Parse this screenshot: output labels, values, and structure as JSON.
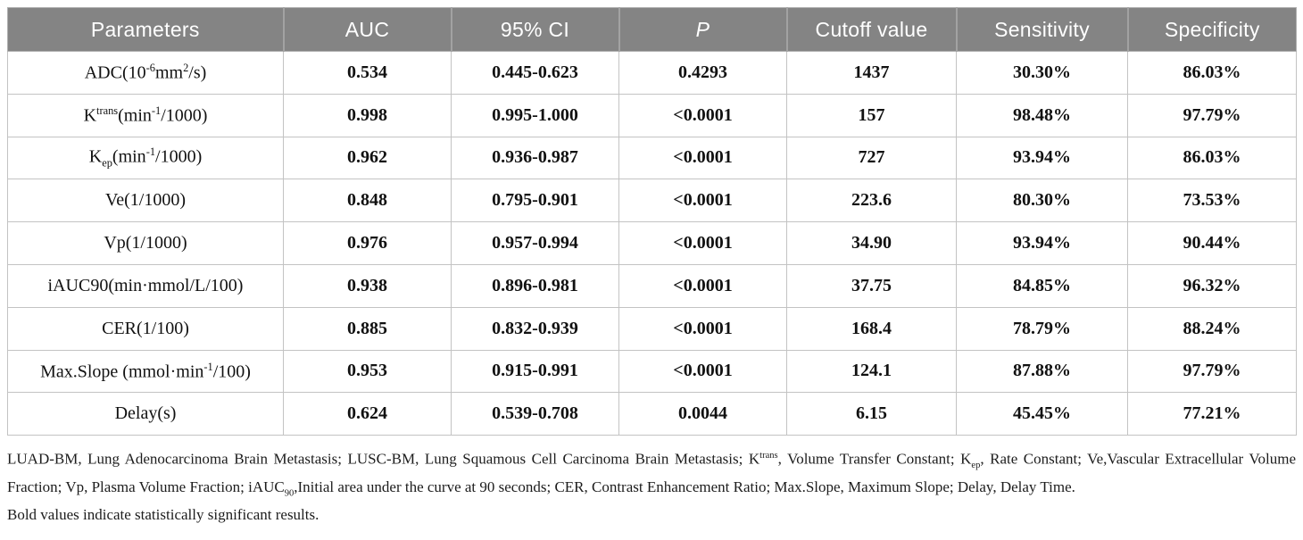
{
  "table": {
    "headers": {
      "parameters": "Parameters",
      "auc": "AUC",
      "ci": "95% CI",
      "p": "P",
      "cutoff": "Cutoff value",
      "sensitivity": "Sensitivity",
      "specificity": "Specificity"
    },
    "rows": [
      {
        "param_html": "ADC(10<sup>-6</sup>mm<sup>2</sup>/s)",
        "auc": "0.534",
        "ci": "0.445-0.623",
        "p": "0.4293",
        "cutoff": "1437",
        "sensitivity": "30.30%",
        "specificity": "86.03%"
      },
      {
        "param_html": "K<sup>trans</sup>(min<sup>-1</sup>/1000)",
        "auc": "0.998",
        "ci": "0.995-1.000",
        "p": "<0.0001",
        "cutoff": "157",
        "sensitivity": "98.48%",
        "specificity": "97.79%"
      },
      {
        "param_html": "K<sub>ep</sub>(min<sup>-1</sup>/1000)",
        "auc": "0.962",
        "ci": "0.936-0.987",
        "p": "<0.0001",
        "cutoff": "727",
        "sensitivity": "93.94%",
        "specificity": "86.03%"
      },
      {
        "param_html": "Ve(1/1000)",
        "auc": "0.848",
        "ci": "0.795-0.901",
        "p": "<0.0001",
        "cutoff": "223.6",
        "sensitivity": "80.30%",
        "specificity": "73.53%"
      },
      {
        "param_html": "Vp(1/1000)",
        "auc": "0.976",
        "ci": "0.957-0.994",
        "p": "<0.0001",
        "cutoff": "34.90",
        "sensitivity": "93.94%",
        "specificity": "90.44%"
      },
      {
        "param_html": "iAUC90(min&#183;mmol/L/100)",
        "auc": "0.938",
        "ci": "0.896-0.981",
        "p": "<0.0001",
        "cutoff": "37.75",
        "sensitivity": "84.85%",
        "specificity": "96.32%"
      },
      {
        "param_html": "CER(1/100)",
        "auc": "0.885",
        "ci": "0.832-0.939",
        "p": "<0.0001",
        "cutoff": "168.4",
        "sensitivity": "78.79%",
        "specificity": "88.24%"
      },
      {
        "param_html": "Max.Slope (mmol&#183;min<sup>-1</sup>/100)",
        "auc": "0.953",
        "ci": "0.915-0.991",
        "p": "<0.0001",
        "cutoff": "124.1",
        "sensitivity": "87.88%",
        "specificity": "97.79%"
      },
      {
        "param_html": "Delay(s)",
        "auc": "0.624",
        "ci": "0.539-0.708",
        "p": "0.0044",
        "cutoff": "6.15",
        "sensitivity": "45.45%",
        "specificity": "77.21%"
      }
    ]
  },
  "footnote": {
    "abbreviations_html": "LUAD-BM, Lung Adenocarcinoma Brain Metastasis; LUSC-BM, Lung Squamous Cell Carcinoma Brain Metastasis; K<sup>trans</sup>, Volume Transfer Constant; K<sub>ep</sub>, Rate Constant; Ve,Vascular Extracellular Volume Fraction; Vp, Plasma Volume Fraction; iAUC<sub>90</sub>,Initial area under the curve at 90 seconds; CER, Contrast Enhancement Ratio; Max.Slope, Maximum Slope; Delay, Delay Time.",
    "bold_note": "Bold values indicate statistically significant results."
  },
  "colors": {
    "header_bg": "#848484",
    "header_text": "#ffffff",
    "grid_border": "#c3c3c3",
    "body_text": "#111111"
  }
}
